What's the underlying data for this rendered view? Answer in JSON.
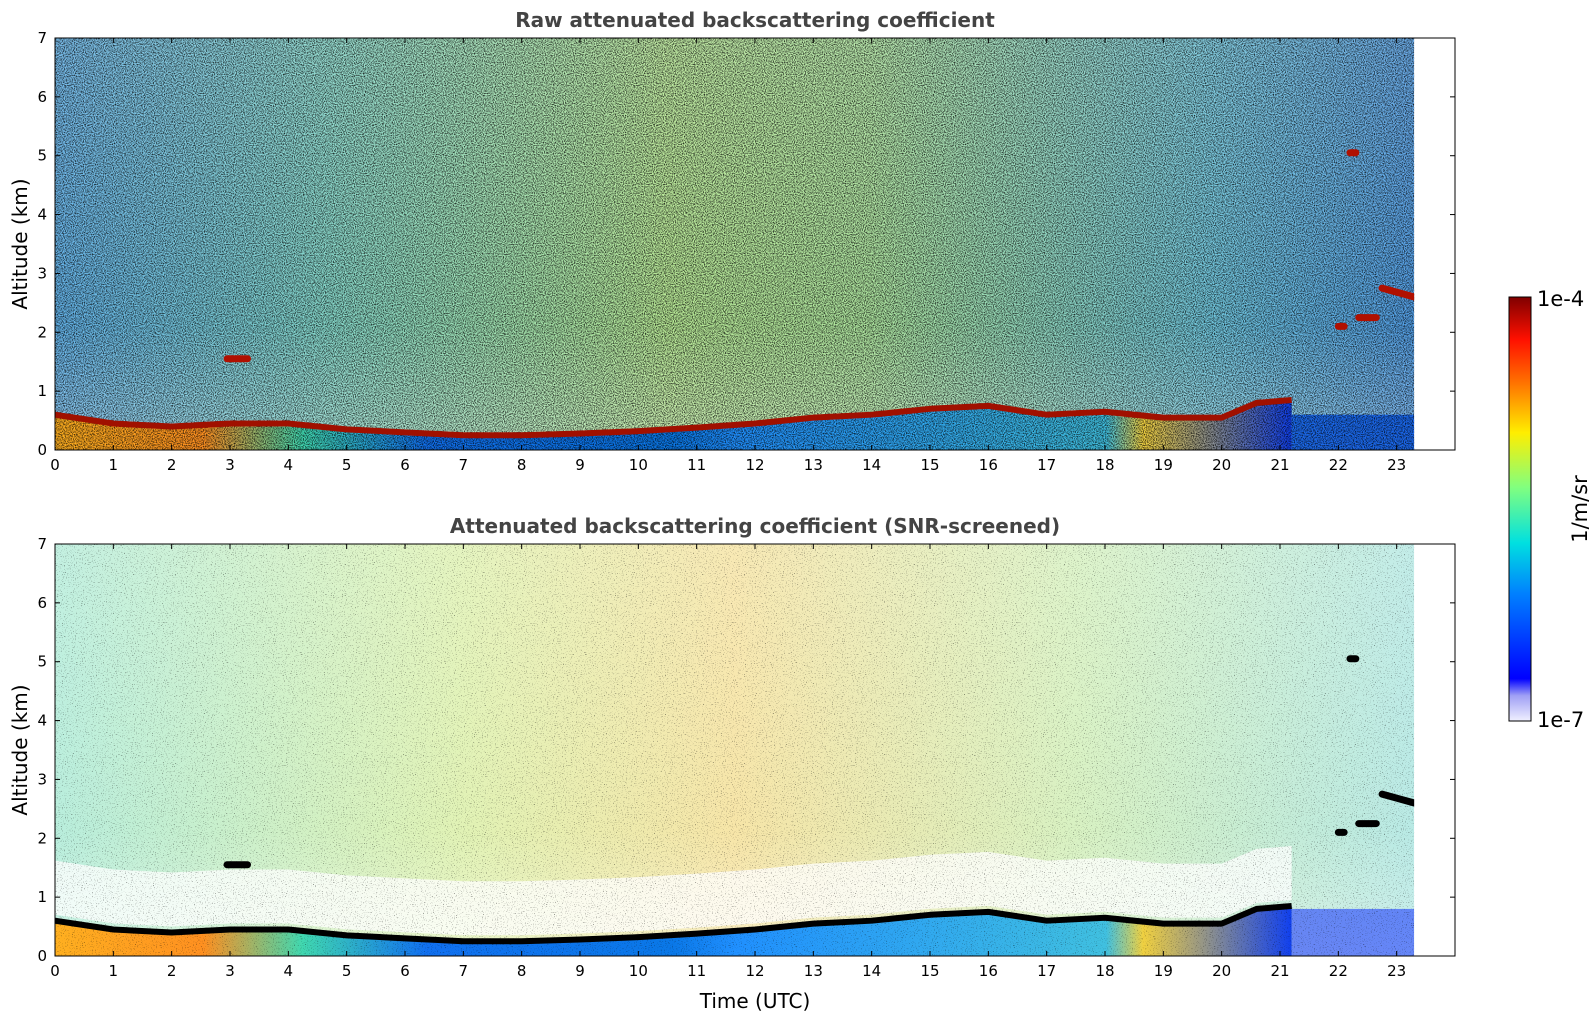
{
  "chart_data": [
    {
      "type": "heatmap",
      "title": "Raw attenuated backscattering coefficient",
      "xlabel": "",
      "ylabel": "Altitude (km)",
      "xlim": [
        0,
        24
      ],
      "ylim": [
        0,
        7
      ],
      "x_ticks": [
        0,
        1,
        2,
        3,
        4,
        5,
        6,
        7,
        8,
        9,
        10,
        11,
        12,
        13,
        14,
        15,
        16,
        17,
        18,
        19,
        20,
        21,
        22,
        23
      ],
      "y_ticks": [
        0,
        1,
        2,
        3,
        4,
        5,
        6,
        7
      ],
      "data_end_time": 23.3,
      "boundary_layer_top_km": [
        [
          0,
          0.6
        ],
        [
          1,
          0.45
        ],
        [
          2,
          0.4
        ],
        [
          3,
          0.45
        ],
        [
          4,
          0.45
        ],
        [
          5,
          0.35
        ],
        [
          6,
          0.3
        ],
        [
          7,
          0.25
        ],
        [
          8,
          0.25
        ],
        [
          9,
          0.28
        ],
        [
          10,
          0.32
        ],
        [
          11,
          0.38
        ],
        [
          12,
          0.45
        ],
        [
          13,
          0.55
        ],
        [
          14,
          0.6
        ],
        [
          15,
          0.7
        ],
        [
          16,
          0.75
        ],
        [
          17,
          0.6
        ],
        [
          18,
          0.65
        ],
        [
          19,
          0.55
        ],
        [
          20,
          0.55
        ],
        [
          20.6,
          0.8
        ],
        [
          21.2,
          0.85
        ]
      ],
      "cloud_segments_km": [
        {
          "t": [
            2.95,
            3.3
          ],
          "alt": 1.55
        },
        {
          "t": [
            22.0,
            22.1
          ],
          "alt": 2.1
        },
        {
          "t": [
            22.35,
            22.65
          ],
          "alt": 2.25
        },
        {
          "t": [
            22.75,
            23.3
          ],
          "alt": 2.75
        },
        {
          "t": [
            22.2,
            22.3
          ],
          "alt": 5.05
        }
      ]
    },
    {
      "type": "heatmap",
      "title": "Attenuated backscattering coefficient (SNR-screened)",
      "xlabel": "Time (UTC)",
      "ylabel": "Altitude (km)",
      "xlim": [
        0,
        24
      ],
      "ylim": [
        0,
        7
      ],
      "x_ticks": [
        0,
        1,
        2,
        3,
        4,
        5,
        6,
        7,
        8,
        9,
        10,
        11,
        12,
        13,
        14,
        15,
        16,
        17,
        18,
        19,
        20,
        21,
        22,
        23
      ],
      "y_ticks": [
        0,
        1,
        2,
        3,
        4,
        5,
        6,
        7
      ],
      "data_end_time": 23.3,
      "colorbar": {
        "label": "1/m/sr",
        "min_label": "1e-7",
        "max_label": "1e-4",
        "scale": "log",
        "colormap": "jet"
      }
    }
  ]
}
